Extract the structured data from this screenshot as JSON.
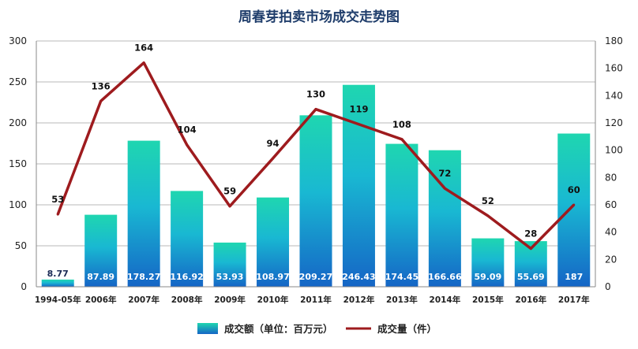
{
  "chart_data": {
    "type": "bar",
    "title": "周春芽拍卖市场成交走势图",
    "categories": [
      "1994-05年",
      "2006年",
      "2007年",
      "2008年",
      "2009年",
      "2010年",
      "2011年",
      "2012年",
      "2013年",
      "2014年",
      "2015年",
      "2016年",
      "2017年"
    ],
    "series": [
      {
        "name": "成交额（单位：百万元）",
        "type": "bar",
        "axis": "left",
        "color": "#1ab6c9",
        "values": [
          8.77,
          87.89,
          178.27,
          116.92,
          53.93,
          108.97,
          209.27,
          246.43,
          174.45,
          166.66,
          59.09,
          55.69,
          187
        ],
        "labels": [
          "8.77",
          "87.89",
          "178.27",
          "116.92",
          "53.93",
          "108.97",
          "209.27",
          "246.43",
          "174.45",
          "166.66",
          "59.09",
          "55.69",
          "187"
        ]
      },
      {
        "name": "成交量（件）",
        "type": "line",
        "axis": "right",
        "color": "#9e1b1e",
        "values": [
          53,
          136,
          164,
          104,
          59,
          94,
          130,
          119,
          108,
          72,
          52,
          28,
          60
        ]
      }
    ],
    "ylim_left": [
      0,
      300
    ],
    "ylim_right": [
      0,
      180
    ],
    "yticks_left": [
      "0",
      "50",
      "100",
      "150",
      "200",
      "250",
      "300"
    ],
    "yticks_right": [
      "0",
      "20",
      "40",
      "60",
      "80",
      "100",
      "120",
      "140",
      "160",
      "180"
    ],
    "grid": true,
    "legend_position": "bottom"
  }
}
